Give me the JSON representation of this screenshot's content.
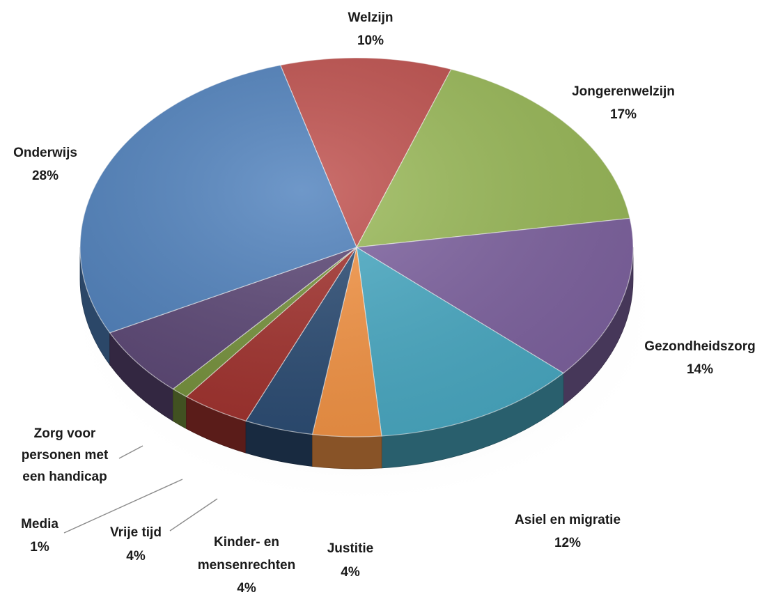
{
  "chart_data": {
    "type": "pie",
    "style": "3d",
    "title": "",
    "slices": [
      {
        "name": "Welzijn",
        "label": "10%",
        "value": 10,
        "color": "#c0504d"
      },
      {
        "name": "Jongerenwelzijn",
        "label": "17%",
        "value": 17,
        "color": "#9bbb59"
      },
      {
        "name": "Gezondheidszorg",
        "label": "14%",
        "value": 14,
        "color": "#8064a2"
      },
      {
        "name": "Asiel en migratie",
        "label": "12%",
        "value": 12,
        "color": "#4bacc6"
      },
      {
        "name": "Justitie",
        "label": "4%",
        "value": 4,
        "color": "#f79646"
      },
      {
        "name": "Kinder- en mensenrechten",
        "label": "4%",
        "value": 4,
        "color": "#2c4d75"
      },
      {
        "name": "Vrije tijd",
        "label": "4%",
        "value": 4,
        "color": "#a3322e"
      },
      {
        "name": "Media",
        "label": "1%",
        "value": 1,
        "color": "#77933c"
      },
      {
        "name": "Zorg voor personen met een handicap",
        "label": "",
        "value": 6,
        "color": "#5c4776"
      },
      {
        "name": "Onderwijs",
        "label": "28%",
        "value": 28,
        "color": "#4f81bd"
      }
    ],
    "legend": "none",
    "data_labels": "category name and percentage"
  }
}
